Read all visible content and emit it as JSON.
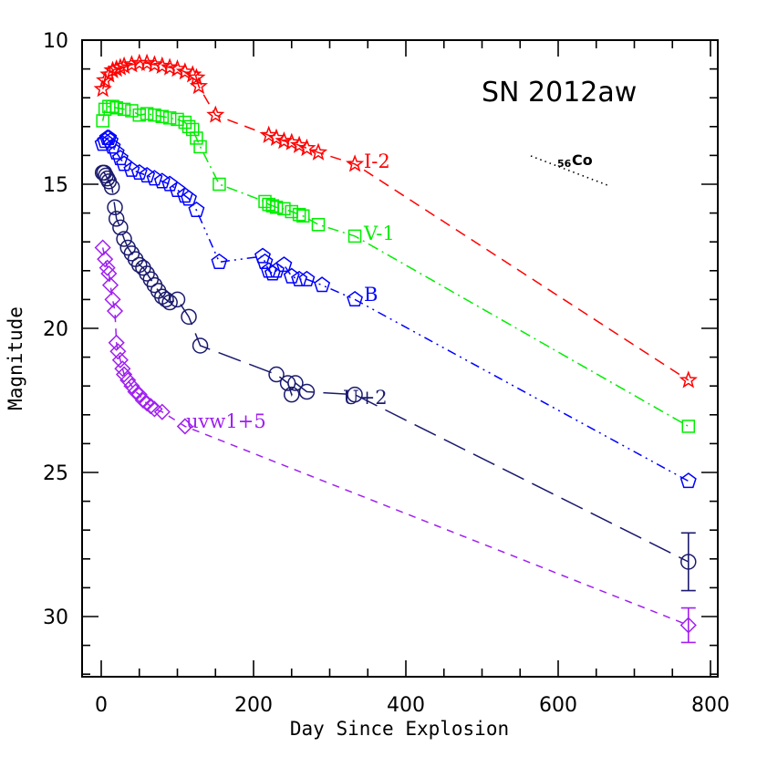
{
  "chart_data": {
    "type": "scatter",
    "title": "SN 2012aw",
    "xlabel": "Day Since Explosion",
    "ylabel": "Magnitude",
    "xlim": [
      -25,
      809
    ],
    "ylim": [
      32.06,
      10
    ],
    "y_inverted": true,
    "x_ticks": [
      0,
      200,
      400,
      600,
      800
    ],
    "y_ticks": [
      10,
      15,
      20,
      25,
      30
    ],
    "grid": false,
    "legend_position": "inline labels next to each series",
    "annotation": {
      "text_sup": "56",
      "text": "Co",
      "description": "dotted line showing 56Co decay slope",
      "x": [
        545,
        666
      ],
      "y": [
        13.9,
        14.9
      ]
    },
    "series": [
      {
        "name": "I-2",
        "color": "#ff0000",
        "marker": "star",
        "line": "dashed",
        "x": [
          2,
          5,
          10,
          15,
          20,
          25,
          30,
          40,
          50,
          60,
          70,
          80,
          90,
          100,
          110,
          120,
          125,
          128,
          150,
          220,
          230,
          240,
          250,
          260,
          270,
          285,
          333,
          771
        ],
        "y": [
          11.7,
          11.4,
          11.2,
          11.05,
          11.0,
          10.95,
          10.9,
          10.85,
          10.8,
          10.8,
          10.85,
          10.9,
          10.95,
          11.0,
          11.1,
          11.2,
          11.3,
          11.6,
          12.6,
          13.3,
          13.4,
          13.5,
          13.55,
          13.65,
          13.75,
          13.9,
          14.3,
          21.8
        ]
      },
      {
        "name": "V-1",
        "color": "#00ee00",
        "marker": "square",
        "line": "dash-dot",
        "x": [
          2,
          5,
          10,
          15,
          20,
          30,
          40,
          50,
          60,
          70,
          80,
          90,
          100,
          110,
          115,
          120,
          125,
          130,
          155,
          215,
          220,
          225,
          230,
          240,
          250,
          260,
          265,
          285,
          333,
          771
        ],
        "y": [
          12.8,
          12.4,
          12.3,
          12.3,
          12.35,
          12.4,
          12.45,
          12.6,
          12.55,
          12.6,
          12.65,
          12.7,
          12.75,
          12.85,
          13.0,
          13.1,
          13.4,
          13.7,
          15.0,
          15.6,
          15.7,
          15.75,
          15.8,
          15.85,
          15.95,
          16.05,
          16.1,
          16.4,
          16.8,
          23.4
        ]
      },
      {
        "name": "B",
        "color": "#0000ff",
        "marker": "pentagon",
        "line": "dash-dot-dot",
        "x": [
          2,
          5,
          8,
          10,
          12,
          15,
          20,
          25,
          30,
          40,
          50,
          60,
          70,
          80,
          90,
          100,
          110,
          115,
          125,
          155,
          212,
          215,
          220,
          225,
          230,
          240,
          250,
          260,
          270,
          290,
          333,
          771
        ],
        "y": [
          13.6,
          13.5,
          13.4,
          13.4,
          13.5,
          13.7,
          13.9,
          14.1,
          14.3,
          14.5,
          14.6,
          14.7,
          14.8,
          14.9,
          15.0,
          15.2,
          15.4,
          15.5,
          15.9,
          17.7,
          17.5,
          17.7,
          18.0,
          18.1,
          18.0,
          17.8,
          18.2,
          18.3,
          18.3,
          18.5,
          19.0,
          25.3
        ]
      },
      {
        "name": "U+2",
        "color": "#1a1a6e",
        "marker": "circle",
        "line": "long-dash",
        "x": [
          2,
          4,
          6,
          8,
          10,
          14,
          18,
          20,
          25,
          30,
          35,
          40,
          45,
          50,
          55,
          60,
          65,
          70,
          75,
          80,
          85,
          90,
          100,
          115,
          130,
          230,
          245,
          250,
          255,
          270,
          333,
          771
        ],
        "y": [
          14.6,
          14.6,
          14.7,
          14.8,
          14.9,
          15.1,
          15.8,
          16.2,
          16.5,
          16.9,
          17.2,
          17.4,
          17.6,
          17.8,
          17.9,
          18.1,
          18.3,
          18.5,
          18.7,
          18.9,
          19.0,
          19.1,
          19.0,
          19.6,
          20.6,
          21.6,
          21.9,
          22.3,
          21.9,
          22.2,
          22.3,
          28.1
        ],
        "error_bars": [
          {
            "x": 771,
            "y": 28.1,
            "err": 1.0
          }
        ]
      },
      {
        "name": "uvw1+5",
        "color": "#a020f0",
        "marker": "diamond",
        "line": "short-dash",
        "x": [
          2,
          5,
          8,
          10,
          12,
          15,
          18,
          20,
          22,
          25,
          28,
          30,
          35,
          40,
          45,
          50,
          55,
          60,
          65,
          70,
          80,
          110,
          771
        ],
        "y": [
          17.2,
          17.6,
          17.9,
          18.1,
          18.5,
          19.0,
          19.4,
          20.5,
          20.8,
          21.1,
          21.4,
          21.6,
          21.8,
          22.0,
          22.2,
          22.3,
          22.5,
          22.6,
          22.7,
          22.8,
          22.9,
          23.4,
          30.3
        ],
        "error_bars": [
          {
            "x": 771,
            "y": 30.3,
            "err": 0.6
          }
        ]
      }
    ]
  }
}
